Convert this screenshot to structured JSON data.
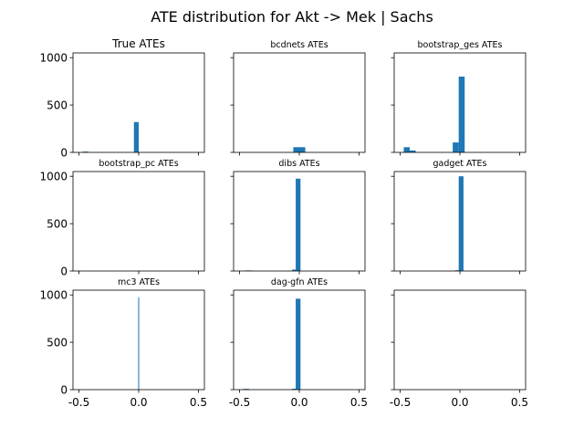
{
  "title": "ATE distribution for Akt -> Mek | Sachs",
  "colors": {
    "bar": "#1f77b4",
    "axis": "#000000",
    "background": "#ffffff"
  },
  "chart_data": {
    "type": "bar",
    "layout": "3x3 grid of histograms, shared x and y axes",
    "xlim": [
      -0.55,
      0.55
    ],
    "ylim": [
      0,
      1050
    ],
    "xticks": [
      -0.5,
      0.0,
      0.5
    ],
    "xtick_labels": [
      "-0.5",
      "0.0",
      "0.5"
    ],
    "yticks": [
      0,
      500,
      1000
    ],
    "ytick_labels": [
      "0",
      "500",
      "1000"
    ],
    "grid": false,
    "panels": [
      {
        "title": "True ATEs",
        "bars": [
          {
            "x0": -0.47,
            "x1": -0.42,
            "y": 8
          },
          {
            "x0": -0.04,
            "x1": 0.0,
            "y": 320
          }
        ]
      },
      {
        "title": "bcdnets ATEs",
        "bars": [
          {
            "x0": -0.05,
            "x1": 0.05,
            "y": 55
          }
        ]
      },
      {
        "title": "bootstrap_ges ATEs",
        "bars": [
          {
            "x0": -0.47,
            "x1": -0.42,
            "y": 55
          },
          {
            "x0": -0.42,
            "x1": -0.37,
            "y": 20
          },
          {
            "x0": -0.06,
            "x1": -0.01,
            "y": 105
          },
          {
            "x0": -0.01,
            "x1": 0.04,
            "y": 800
          }
        ]
      },
      {
        "title": "bootstrap_pc ATEs",
        "bars": []
      },
      {
        "title": "dibs ATEs",
        "bars": [
          {
            "x0": -0.45,
            "x1": -0.4,
            "y": 6
          },
          {
            "x0": -0.06,
            "x1": -0.03,
            "y": 15
          },
          {
            "x0": -0.03,
            "x1": 0.01,
            "y": 975
          }
        ]
      },
      {
        "title": "gadget ATEs",
        "bars": [
          {
            "x0": -0.04,
            "x1": -0.01,
            "y": 8
          },
          {
            "x0": -0.01,
            "x1": 0.03,
            "y": 1000
          }
        ]
      },
      {
        "title": "mc3 ATEs",
        "bars": [
          {
            "x0": -0.004,
            "x1": 0.004,
            "y": 975
          }
        ]
      },
      {
        "title": "dag-gfn ATEs",
        "bars": [
          {
            "x0": -0.47,
            "x1": -0.42,
            "y": 8
          },
          {
            "x0": -0.06,
            "x1": -0.03,
            "y": 10
          },
          {
            "x0": -0.03,
            "x1": 0.01,
            "y": 960
          }
        ]
      },
      {
        "title": "",
        "bars": []
      }
    ]
  }
}
